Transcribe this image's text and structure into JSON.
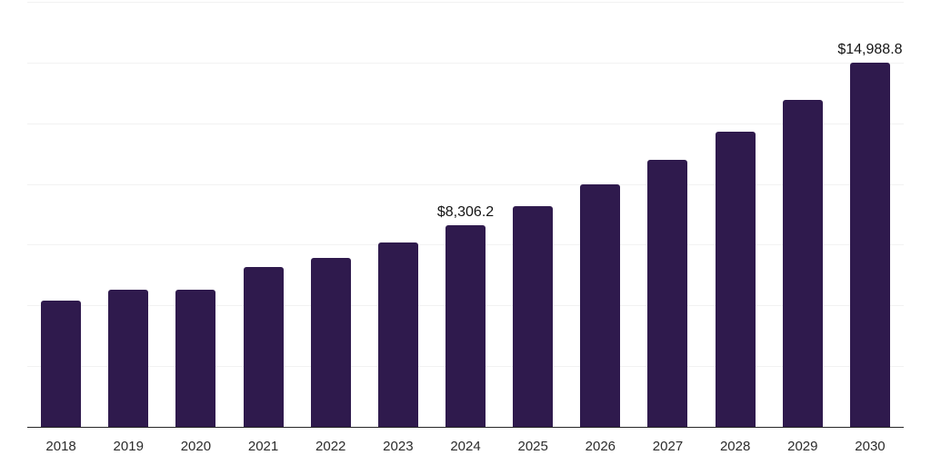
{
  "chart_data": {
    "type": "bar",
    "title": "",
    "xlabel": "",
    "ylabel": "",
    "categories": [
      "2018",
      "2019",
      "2020",
      "2021",
      "2022",
      "2023",
      "2024",
      "2025",
      "2026",
      "2027",
      "2028",
      "2029",
      "2030"
    ],
    "values": [
      5180,
      5630,
      5665,
      6600,
      6970,
      7605,
      8306.2,
      9095,
      9990,
      11000,
      12155,
      13460,
      14988.8
    ],
    "bar_labels": [
      "",
      "",
      "",
      "",
      "",
      "",
      "$8,306.2",
      "",
      "",
      "",
      "",
      "",
      "$14,988.8"
    ],
    "ylim": [
      0,
      17500
    ],
    "gridline_interval": 2500,
    "grid": "horizontal",
    "legend_position": "none",
    "y_tick_labels_visible": false,
    "currency_prefix": "$",
    "colors": {
      "bar": "#2f1a4d",
      "axis_line": "#262626",
      "gridline": "#f2f2f2",
      "value_label_text": "#141414",
      "tick_label_text": "#2b2b2b",
      "background": "#ffffff"
    }
  }
}
